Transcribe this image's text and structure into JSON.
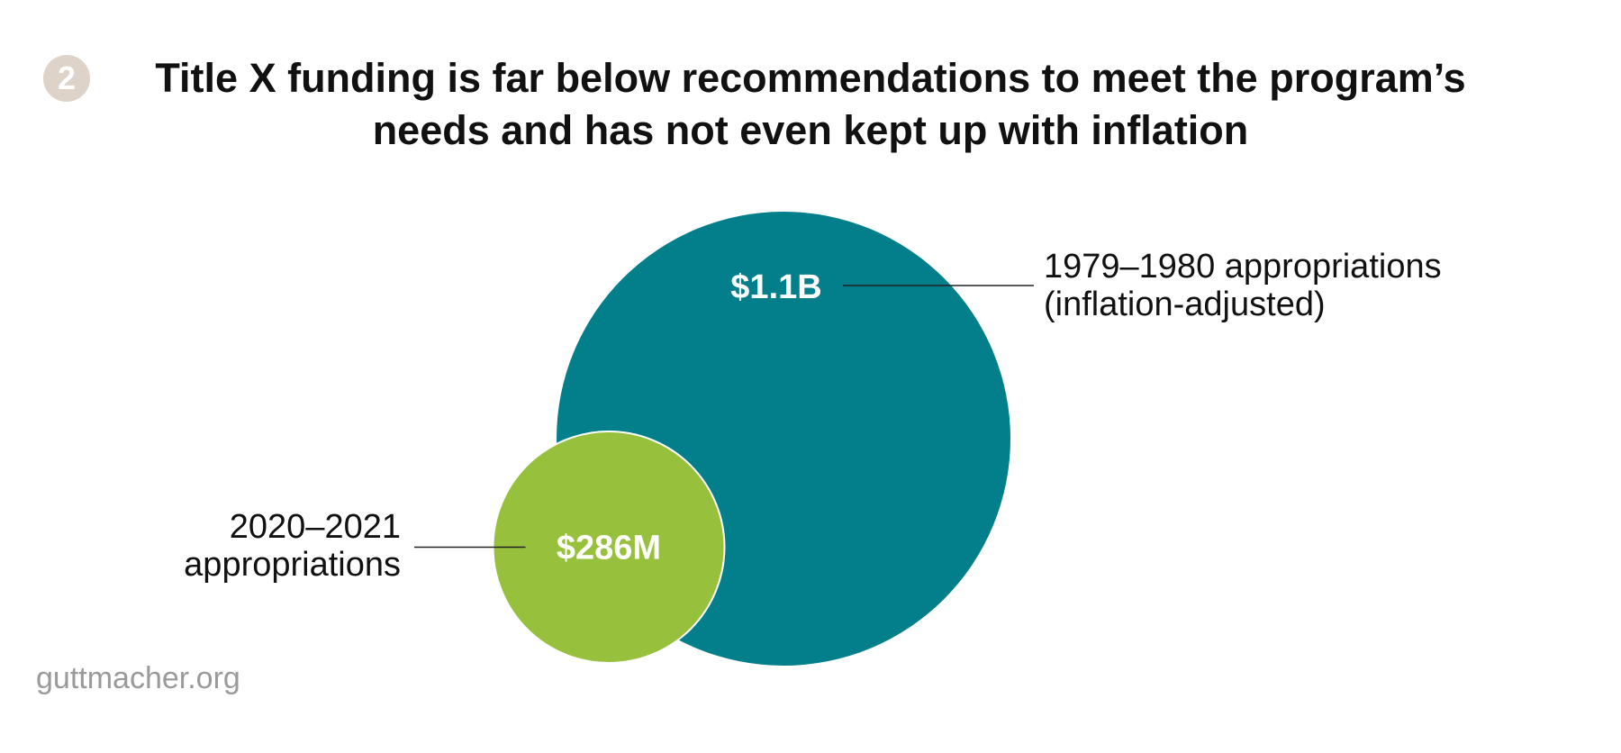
{
  "badge": "2",
  "title_line1": "Title X funding is far below recommendations to meet the program’s",
  "title_line2": "needs and has not even kept up with inflation",
  "source": "guttmacher.org",
  "colors": {
    "large_circle": "#037f8c",
    "small_circle": "#97c13d",
    "badge": "#ddd3c8"
  },
  "chart_data": {
    "type": "bubble",
    "title": "Title X funding is far below recommendations to meet the program’s needs and has not even kept up with inflation",
    "series": [
      {
        "name": "1979–1980 appropriations (inflation-adjusted)",
        "label_line1": "1979–1980 appropriations",
        "label_line2": "(inflation-adjusted)",
        "value": 1100,
        "value_label": "$1.1B",
        "unit": "USD millions",
        "color": "#037f8c"
      },
      {
        "name": "2020–2021 appropriations",
        "label_line1": "2020–2021",
        "label_line2": "appropriations",
        "value": 286,
        "value_label": "$286M",
        "unit": "USD millions",
        "color": "#97c13d"
      }
    ]
  }
}
